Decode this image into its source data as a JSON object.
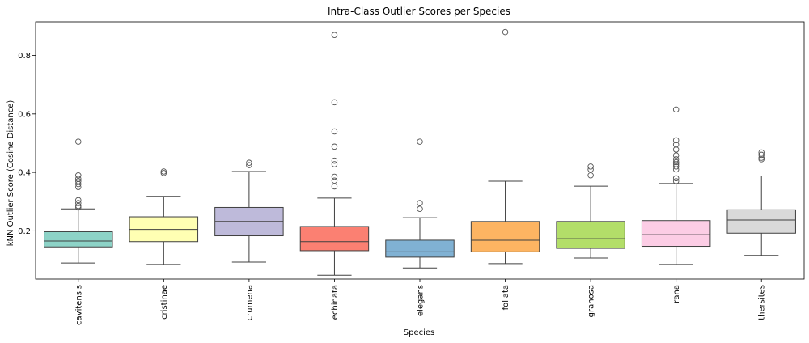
{
  "chart_data": {
    "type": "box",
    "title": "Intra-Class Outlier Scores per Species",
    "xlabel": "Species",
    "ylabel": "kNN Outlier Score (Cosine Distance)",
    "ylim": [
      0.035,
      0.915
    ],
    "yticks": [
      0.2,
      0.4,
      0.6,
      0.8
    ],
    "ytick_labels": [
      "0.2",
      "0.4",
      "0.6",
      "0.8"
    ],
    "grid": false,
    "legend": "none",
    "categories": [
      "cavitensis",
      "cristinae",
      "crumena",
      "echinata",
      "elegans",
      "foliata",
      "granosa",
      "rana",
      "thersites"
    ],
    "boxes": [
      {
        "name": "cavitensis",
        "color": "#8dd3c7",
        "whisker_low": 0.09,
        "q1": 0.145,
        "median": 0.165,
        "q3": 0.197,
        "whisker_high": 0.275,
        "outliers": [
          0.505,
          0.39,
          0.378,
          0.37,
          0.36,
          0.35,
          0.305,
          0.295,
          0.285,
          0.28
        ]
      },
      {
        "name": "cristinae",
        "color": "#ffffb3",
        "whisker_low": 0.085,
        "q1": 0.163,
        "median": 0.205,
        "q3": 0.248,
        "whisker_high": 0.318,
        "outliers": [
          0.403,
          0.398
        ]
      },
      {
        "name": "crumena",
        "color": "#bebada",
        "whisker_low": 0.093,
        "q1": 0.183,
        "median": 0.232,
        "q3": 0.28,
        "whisker_high": 0.403,
        "outliers": [
          0.433,
          0.425
        ]
      },
      {
        "name": "echinata",
        "color": "#fb8072",
        "whisker_low": 0.048,
        "q1": 0.132,
        "median": 0.163,
        "q3": 0.215,
        "whisker_high": 0.312,
        "outliers": [
          0.87,
          0.64,
          0.54,
          0.488,
          0.44,
          0.428,
          0.385,
          0.372,
          0.352
        ]
      },
      {
        "name": "elegans",
        "color": "#80b1d3",
        "whisker_low": 0.073,
        "q1": 0.11,
        "median": 0.128,
        "q3": 0.168,
        "whisker_high": 0.245,
        "outliers": [
          0.505,
          0.295,
          0.275
        ]
      },
      {
        "name": "foliata",
        "color": "#fdb462",
        "whisker_low": 0.088,
        "q1": 0.128,
        "median": 0.168,
        "q3": 0.232,
        "whisker_high": 0.37,
        "outliers": [
          0.88
        ]
      },
      {
        "name": "granosa",
        "color": "#b3de69",
        "whisker_low": 0.107,
        "q1": 0.14,
        "median": 0.173,
        "q3": 0.232,
        "whisker_high": 0.353,
        "outliers": [
          0.42,
          0.41,
          0.39
        ]
      },
      {
        "name": "rana",
        "color": "#fccde5",
        "whisker_low": 0.085,
        "q1": 0.147,
        "median": 0.187,
        "q3": 0.235,
        "whisker_high": 0.362,
        "outliers": [
          0.615,
          0.51,
          0.495,
          0.478,
          0.458,
          0.445,
          0.435,
          0.428,
          0.42,
          0.41,
          0.38,
          0.37
        ]
      },
      {
        "name": "thersites",
        "color": "#d9d9d9",
        "whisker_low": 0.116,
        "q1": 0.192,
        "median": 0.237,
        "q3": 0.272,
        "whisker_high": 0.388,
        "outliers": [
          0.468,
          0.46,
          0.45,
          0.445
        ]
      }
    ]
  }
}
